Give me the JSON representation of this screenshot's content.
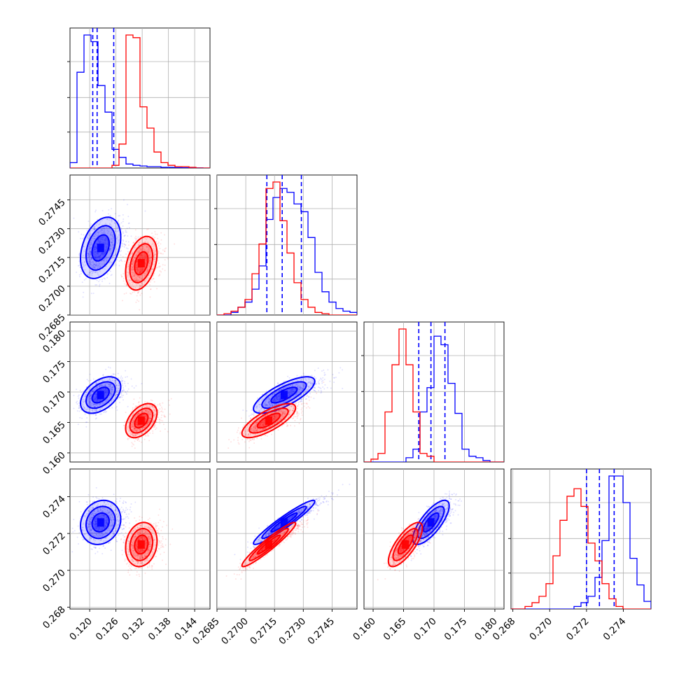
{
  "chart_data": {
    "type": "corner",
    "colors": {
      "blue": "#0000ff",
      "red": "#ff0000"
    },
    "grid": true,
    "parameters": [
      {
        "id": "p0",
        "range": [
          0.1155,
          0.1475
        ],
        "ticks": [
          "0.120",
          "0.126",
          "0.132",
          "0.138",
          "0.144"
        ],
        "tick_values": [
          0.12,
          0.126,
          0.132,
          0.138,
          0.144
        ]
      },
      {
        "id": "p1",
        "range": [
          0.2685,
          0.2758
        ],
        "ticks": [
          "0.2685",
          "0.2700",
          "0.2715",
          "0.2730",
          "0.2745"
        ],
        "tick_values": [
          0.2685,
          0.27,
          0.2715,
          0.273,
          0.2745
        ]
      },
      {
        "id": "p2",
        "range": [
          0.1585,
          0.1815
        ],
        "ticks": [
          "0.160",
          "0.165",
          "0.170",
          "0.175",
          "0.180"
        ],
        "tick_values": [
          0.16,
          0.165,
          0.17,
          0.175,
          0.18
        ]
      },
      {
        "id": "p3",
        "range": [
          0.2679,
          0.2755
        ],
        "ticks": [
          "0.268",
          "0.270",
          "0.272",
          "0.274"
        ],
        "tick_values": [
          0.268,
          0.27,
          0.272,
          0.274
        ]
      }
    ],
    "series": [
      {
        "color": "#0000ff",
        "mean": [
          0.1225,
          0.272,
          0.1695,
          0.2726
        ],
        "std": [
          0.0023,
          0.0008,
          0.0015,
          0.0006
        ],
        "corr": [
          [
            1,
            0.35,
            0.45,
            0.15
          ],
          [
            0.35,
            1,
            0.75,
            0.95
          ],
          [
            0.45,
            0.75,
            1,
            0.75
          ],
          [
            0.15,
            0.95,
            0.75,
            1
          ]
        ],
        "quantile_lines": [
          [
            0.1207,
            0.1217,
            0.1255
          ],
          [
            0.2711,
            0.2719,
            0.2729
          ],
          [
            0.1675,
            0.1695,
            0.1718
          ],
          [
            0.272,
            0.2727,
            0.2735
          ]
        ],
        "hist": [
          [
            0.04,
            0.72,
            1.0,
            0.95,
            0.62,
            0.42,
            0.14,
            0.08,
            0.03,
            0.02,
            0.015,
            0.01,
            0.01,
            0.005,
            0.005,
            0.003,
            0.002,
            0.002,
            0.001,
            0.0
          ],
          [
            0.0,
            0.0,
            0.02,
            0.06,
            0.1,
            0.2,
            0.38,
            0.74,
            0.91,
            0.98,
            0.95,
            0.86,
            0.8,
            0.6,
            0.33,
            0.18,
            0.1,
            0.05,
            0.03,
            0.02
          ],
          [
            0.0,
            0.0,
            0.0,
            0.0,
            0.0,
            0.0,
            0.03,
            0.09,
            0.35,
            0.52,
            0.88,
            0.82,
            0.55,
            0.34,
            0.09,
            0.04,
            0.03,
            0.01,
            0.0,
            0.0
          ],
          [
            0.0,
            0.0,
            0.0,
            0.0,
            0.0,
            0.0,
            0.0,
            0.0,
            0.0,
            0.02,
            0.05,
            0.1,
            0.25,
            0.54,
            1.05,
            1.05,
            0.84,
            0.4,
            0.19,
            0.06
          ]
        ]
      },
      {
        "color": "#ff0000",
        "mean": [
          0.1318,
          0.2712,
          0.1653,
          0.2714
        ],
        "std": [
          0.0018,
          0.0007,
          0.0014,
          0.0006
        ],
        "corr": [
          [
            1,
            0.35,
            0.45,
            0.15
          ],
          [
            0.35,
            1,
            0.75,
            0.95
          ],
          [
            0.45,
            0.75,
            1,
            0.75
          ],
          [
            0.15,
            0.95,
            0.75,
            1
          ]
        ],
        "hist": [
          [
            0.0,
            0.0,
            0.0,
            0.0,
            0.0,
            0.0,
            0.02,
            0.18,
            1.0,
            0.98,
            0.46,
            0.3,
            0.12,
            0.04,
            0.02,
            0.01,
            0.01,
            0.005,
            0.0,
            0.0
          ],
          [
            0.0,
            0.01,
            0.03,
            0.06,
            0.12,
            0.32,
            0.55,
            0.98,
            1.03,
            0.73,
            0.48,
            0.25,
            0.12,
            0.06,
            0.02,
            0.01,
            0.0,
            0.0,
            0.0,
            0.0
          ],
          [
            0.0,
            0.02,
            0.06,
            0.35,
            0.68,
            0.93,
            0.68,
            0.35,
            0.06,
            0.04,
            0.0,
            0.0,
            0.0,
            0.0,
            0.0,
            0.0,
            0.0,
            0.0,
            0.0,
            0.0
          ],
          [
            0.0,
            0.0,
            0.02,
            0.05,
            0.1,
            0.2,
            0.42,
            0.7,
            0.89,
            0.95,
            0.81,
            0.52,
            0.38,
            0.2,
            0.08,
            0.02,
            0.0,
            0.0,
            0.0,
            0.0
          ]
        ]
      }
    ]
  }
}
